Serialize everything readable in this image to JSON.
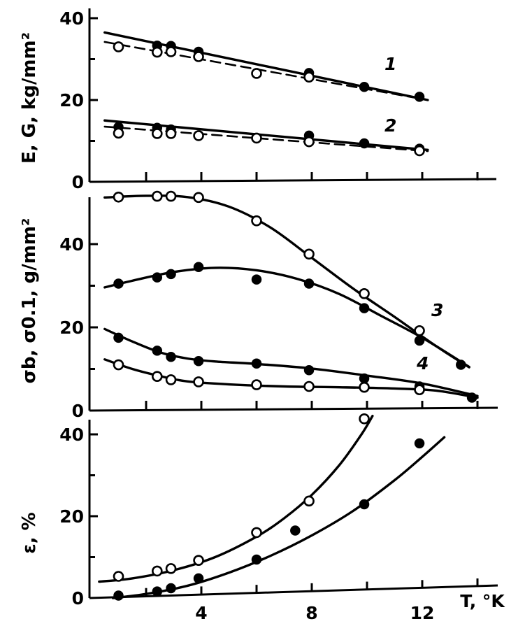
{
  "chart_data": [
    {
      "type": "line",
      "panel": "top",
      "ylabel": "E, G, kg/mm²",
      "yticks": [
        "0",
        "20",
        "40"
      ],
      "ylim": [
        0,
        40
      ],
      "xlim": [
        0,
        14
      ],
      "series": [
        {
          "name": "1",
          "style": "solid",
          "marker": "filled",
          "line": [
            [
              0.5,
              36.5
            ],
            [
              12.2,
              20.0
            ]
          ],
          "points": [
            [
              2.4,
              33.3
            ],
            [
              2.9,
              33.2
            ],
            [
              3.9,
              31.8
            ],
            [
              7.9,
              26.6
            ],
            [
              9.9,
              23.2
            ],
            [
              11.9,
              20.8
            ]
          ]
        },
        {
          "name": "",
          "style": "dashed",
          "marker": "open",
          "line": [
            [
              0.5,
              34.2
            ],
            [
              12.2,
              20.0
            ]
          ],
          "points": [
            [
              1.0,
              33.0
            ],
            [
              2.4,
              31.7
            ],
            [
              2.9,
              31.8
            ],
            [
              3.9,
              30.6
            ],
            [
              6.0,
              26.5
            ],
            [
              7.9,
              25.6
            ]
          ]
        },
        {
          "name": "2",
          "style": "solid",
          "marker": "filled",
          "line": [
            [
              0.5,
              15.0
            ],
            [
              12.2,
              7.8
            ]
          ],
          "points": [
            [
              1.0,
              13.4
            ],
            [
              2.4,
              13.2
            ],
            [
              2.9,
              12.8
            ],
            [
              7.9,
              11.3
            ],
            [
              9.9,
              9.4
            ],
            [
              11.9,
              8.1
            ]
          ]
        },
        {
          "name": "",
          "style": "dashed",
          "marker": "open",
          "line": [
            [
              0.5,
              13.5
            ],
            [
              12.2,
              7.5
            ]
          ],
          "points": [
            [
              1.0,
              11.9
            ],
            [
              2.4,
              11.8
            ],
            [
              2.9,
              11.8
            ],
            [
              3.9,
              11.3
            ],
            [
              6.0,
              10.7
            ],
            [
              7.9,
              9.8
            ],
            [
              11.9,
              7.6
            ]
          ]
        }
      ]
    },
    {
      "type": "line",
      "panel": "middle",
      "ylabel": "σb, σ0.1, g/mm²",
      "yticks": [
        "0",
        "20",
        "40"
      ],
      "ylim": [
        0,
        52
      ],
      "xlim": [
        0,
        14
      ],
      "series": [
        {
          "name": "",
          "marker": "open",
          "line": [
            [
              0.5,
              51.2
            ],
            [
              2.0,
              51.6
            ],
            [
              3.5,
              51.3
            ],
            [
              5.0,
              49.0
            ],
            [
              6.5,
              44.0
            ],
            [
              8.0,
              36.7
            ],
            [
              9.5,
              29.3
            ],
            [
              11.0,
              22.5
            ],
            [
              12.5,
              15.5
            ],
            [
              13.7,
              10.4
            ]
          ],
          "points": [
            [
              1.0,
              51.3
            ],
            [
              2.4,
              51.5
            ],
            [
              2.9,
              51.5
            ],
            [
              3.9,
              51.2
            ],
            [
              6.0,
              45.6
            ],
            [
              7.9,
              37.6
            ],
            [
              9.9,
              28.1
            ],
            [
              11.9,
              19.2
            ]
          ]
        },
        {
          "name": "3",
          "marker": "filled",
          "line": [
            [
              0.5,
              29.6
            ],
            [
              1.5,
              31.2
            ],
            [
              3.0,
              33.3
            ],
            [
              4.5,
              34.3
            ],
            [
              6.0,
              33.7
            ],
            [
              7.5,
              31.6
            ],
            [
              9.0,
              28.0
            ],
            [
              10.5,
              22.8
            ],
            [
              12.0,
              17.5
            ],
            [
              13.7,
              10.5
            ]
          ],
          "points": [
            [
              1.0,
              30.5
            ],
            [
              2.4,
              32.0
            ],
            [
              2.9,
              32.8
            ],
            [
              3.9,
              34.5
            ],
            [
              6.0,
              31.5
            ],
            [
              7.9,
              30.5
            ],
            [
              9.9,
              24.6
            ],
            [
              11.9,
              16.8
            ],
            [
              13.4,
              11.0
            ]
          ]
        },
        {
          "name": "4",
          "marker": "filled",
          "line": [
            [
              0.5,
              19.6
            ],
            [
              1.5,
              16.6
            ],
            [
              2.5,
              14.0
            ],
            [
              3.5,
              12.5
            ],
            [
              4.5,
              11.8
            ],
            [
              6.0,
              11.2
            ],
            [
              8.0,
              10.1
            ],
            [
              10.0,
              8.4
            ],
            [
              12.0,
              6.5
            ],
            [
              14.0,
              3.5
            ]
          ],
          "points": [
            [
              1.0,
              17.5
            ],
            [
              2.4,
              14.4
            ],
            [
              2.9,
              12.9
            ],
            [
              3.9,
              11.9
            ],
            [
              6.0,
              11.3
            ],
            [
              7.9,
              9.7
            ],
            [
              9.9,
              7.7
            ],
            [
              11.9,
              5.8
            ],
            [
              13.8,
              3.1
            ]
          ]
        },
        {
          "name": "",
          "marker": "open",
          "line": [
            [
              0.5,
              12.3
            ],
            [
              1.5,
              10.0
            ],
            [
              2.5,
              8.3
            ],
            [
              3.5,
              7.0
            ],
            [
              5.0,
              6.3
            ],
            [
              7.0,
              5.8
            ],
            [
              9.0,
              5.6
            ],
            [
              11.0,
              5.3
            ],
            [
              12.5,
              4.8
            ],
            [
              14.0,
              3.1
            ]
          ],
          "points": [
            [
              1.0,
              11.0
            ],
            [
              2.4,
              8.2
            ],
            [
              2.9,
              7.4
            ],
            [
              3.9,
              6.9
            ],
            [
              6.0,
              6.2
            ],
            [
              7.9,
              5.8
            ],
            [
              9.9,
              5.6
            ],
            [
              11.9,
              5.0
            ]
          ]
        }
      ]
    },
    {
      "type": "line",
      "panel": "bottom",
      "ylabel": "ε, %",
      "yticks": [
        "0",
        "20",
        "40"
      ],
      "xticks": [
        "4",
        "8",
        "12"
      ],
      "xtick_values": [
        4,
        8,
        12
      ],
      "xlabel": "T, °K",
      "ylim": [
        0,
        40
      ],
      "xlim": [
        0,
        14
      ],
      "series": [
        {
          "name": "",
          "marker": "open",
          "line": [
            [
              0.3,
              4.0
            ],
            [
              1.5,
              4.8
            ],
            [
              3.0,
              6.8
            ],
            [
              4.5,
              10.0
            ],
            [
              6.0,
              15.0
            ],
            [
              7.0,
              19.5
            ],
            [
              8.0,
              25.2
            ],
            [
              9.0,
              32.5
            ],
            [
              9.8,
              40.0
            ],
            [
              10.2,
              44.5
            ]
          ],
          "points": [
            [
              1.0,
              5.3
            ],
            [
              2.4,
              6.6
            ],
            [
              2.9,
              7.2
            ],
            [
              3.9,
              9.2
            ],
            [
              6.0,
              16.0
            ],
            [
              7.9,
              23.7
            ],
            [
              9.9,
              43.8
            ]
          ]
        },
        {
          "name": "",
          "marker": "filled",
          "line": [
            [
              0.8,
              0.0
            ],
            [
              2.0,
              1.0
            ],
            [
              3.5,
              3.0
            ],
            [
              5.0,
              6.2
            ],
            [
              6.5,
              10.3
            ],
            [
              8.0,
              15.3
            ],
            [
              9.5,
              21.3
            ],
            [
              11.0,
              28.8
            ],
            [
              12.0,
              34.5
            ],
            [
              12.8,
              39.3
            ]
          ],
          "points": [
            [
              1.0,
              0.6
            ],
            [
              2.4,
              1.6
            ],
            [
              2.9,
              2.4
            ],
            [
              3.9,
              4.8
            ],
            [
              6.0,
              9.4
            ],
            [
              7.4,
              16.5
            ],
            [
              9.9,
              22.9
            ],
            [
              11.9,
              37.8
            ]
          ]
        }
      ]
    }
  ]
}
